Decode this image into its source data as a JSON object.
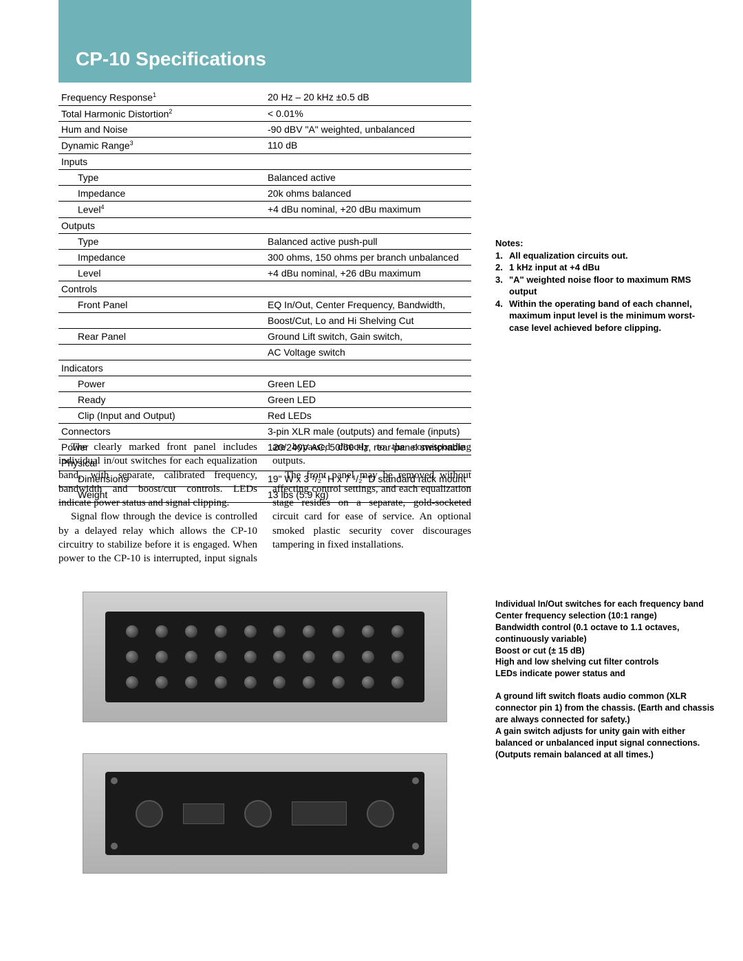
{
  "colors": {
    "teal": "#6fb2b8",
    "text": "#000000",
    "bg": "#ffffff",
    "title_text": "#ffffff"
  },
  "title": "CP-10 Specifications",
  "spec_rows": [
    {
      "label": "Frequency Response",
      "sup": "1",
      "value": "20 Hz – 20 kHz ±0.5 dB",
      "indent": false
    },
    {
      "label": "Total Harmonic Distortion",
      "sup": "2",
      "value": "< 0.01%",
      "indent": false
    },
    {
      "label": "Hum and Noise",
      "value": "-90 dBV \"A\" weighted, unbalanced",
      "indent": false
    },
    {
      "label": "Dynamic Range",
      "sup": "3",
      "value": "110 dB",
      "indent": false
    },
    {
      "label": "Inputs",
      "value": "",
      "indent": false
    },
    {
      "label": "Type",
      "value": "Balanced active",
      "indent": true
    },
    {
      "label": "Impedance",
      "value": "20k ohms balanced",
      "indent": true
    },
    {
      "label": "Level",
      "sup": "4",
      "value": "+4 dBu nominal, +20 dBu maximum",
      "indent": true
    },
    {
      "label": "Outputs",
      "value": "",
      "indent": false
    },
    {
      "label": "Type",
      "value": "Balanced active push-pull",
      "indent": true
    },
    {
      "label": "Impedance",
      "value": "300 ohms, 150 ohms per branch unbalanced",
      "indent": true
    },
    {
      "label": "Level",
      "value": "+4 dBu nominal, +26 dBu maximum",
      "indent": true
    },
    {
      "label": "Controls",
      "value": "",
      "indent": false
    },
    {
      "label": "Front Panel",
      "value": "EQ In/Out, Center Frequency, Bandwidth,",
      "indent": true
    },
    {
      "label": "",
      "value": "Boost/Cut, Lo and Hi Shelving Cut",
      "indent": true
    },
    {
      "label": "Rear Panel",
      "value": "Ground Lift switch, Gain switch,",
      "indent": true
    },
    {
      "label": "",
      "value": "AC Voltage switch",
      "indent": true
    },
    {
      "label": "Indicators",
      "value": "",
      "indent": false
    },
    {
      "label": "Power",
      "value": "Green LED",
      "indent": true
    },
    {
      "label": "Ready",
      "value": "Green LED",
      "indent": true
    },
    {
      "label": "Clip (Input and Output)",
      "value": "Red LEDs",
      "indent": true
    },
    {
      "label": "Connectors",
      "value": "3-pin XLR male (outputs) and female (inputs)",
      "indent": false
    },
    {
      "label": "Power",
      "value": "120/240V AC, 50/60 Hz, rear-panel switchable",
      "indent": false
    },
    {
      "label": "Physical",
      "value": "",
      "indent": false
    },
    {
      "label": "Dimensions",
      "value": "19\" W x 3 ¹/₂\" H x 7 ¹/₂\" D standard rack mount",
      "indent": true
    },
    {
      "label": "Weight",
      "value": "13 lbs (5.9 kg)",
      "indent": true
    }
  ],
  "body": {
    "p1": "The clearly marked front panel includes individual in/out switches for each equalization band, with separate, calibrated frequency, bandwidth and boost/cut controls. LEDs indicate power status and signal clipping.",
    "p2": "Signal flow through the device is controlled by a delayed relay which allows the CP-10 circuitry to stabilize before it is engaged. When power to the CP-10 is interrupted, input signals are bypassed directly to the corresponding outputs.",
    "p3": "The front panel may be removed without affecting control settings, and each equalization stage resides on a separate, gold-socketed circuit card for ease of service. An optional smoked plastic security cover discourages tampering in fixed installations."
  },
  "notes": {
    "heading": "Notes:",
    "items": [
      "All equalization circuits out.",
      "1 kHz input at +4 dBu",
      "\"A\" weighted noise floor to maximum RMS output",
      "Within the operating band of each channel, maximum input level is the minimum worst-case level achieved before clipping."
    ]
  },
  "features": {
    "f1": "Individual In/Out switches for each frequency band",
    "f2": "Center frequency selection (10:1 range)",
    "f3": "Bandwidth control (0.1 octave to 1.1 octaves, continuously variable)",
    "f4": "Boost or cut (± 15 dB)",
    "f5": "High and low shelving cut filter controls",
    "f6": "LEDs indicate power status and",
    "f7": "A ground lift switch floats audio common (XLR connector pin 1) from the chassis. (Earth and chassis are always connected for safety.)",
    "f8": "A gain switch adjusts for unity gain with either balanced or unbalanced input signal connections. (Outputs remain balanced at all times.)"
  }
}
